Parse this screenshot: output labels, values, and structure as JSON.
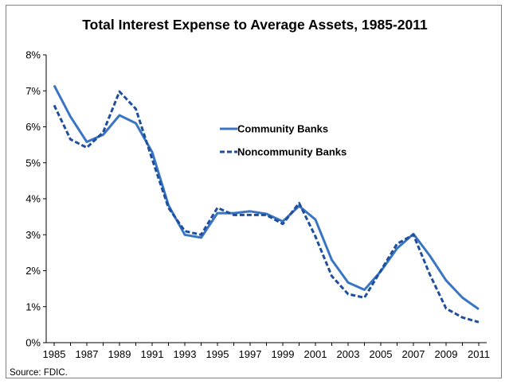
{
  "chart_data": {
    "type": "line",
    "title": "Total Interest Expense to Average Assets, 1985-2011",
    "xlabel": "",
    "ylabel": "",
    "x": [
      1985,
      1986,
      1987,
      1988,
      1989,
      1990,
      1991,
      1992,
      1993,
      1994,
      1995,
      1996,
      1997,
      1998,
      1999,
      2000,
      2001,
      2002,
      2003,
      2004,
      2005,
      2006,
      2007,
      2008,
      2009,
      2010,
      2011
    ],
    "x_tick_labels": [
      "1985",
      "1987",
      "1989",
      "1991",
      "1993",
      "1995",
      "1997",
      "1999",
      "2001",
      "2003",
      "2005",
      "2007",
      "2009",
      "2011"
    ],
    "ylim": [
      0,
      8
    ],
    "y_ticks": [
      0,
      1,
      2,
      3,
      4,
      5,
      6,
      7,
      8
    ],
    "y_tick_labels": [
      "0%",
      "1%",
      "2%",
      "3%",
      "4%",
      "5%",
      "6%",
      "7%",
      "8%"
    ],
    "grid": false,
    "legend_position": "center-right",
    "series": [
      {
        "name": "Community Banks",
        "style": "solid",
        "color": "#3a75c4",
        "values": [
          7.15,
          6.28,
          5.58,
          5.78,
          6.32,
          6.1,
          5.3,
          3.82,
          3.0,
          2.92,
          3.6,
          3.6,
          3.65,
          3.58,
          3.37,
          3.8,
          3.42,
          2.3,
          1.67,
          1.47,
          1.98,
          2.62,
          3.02,
          2.42,
          1.73,
          1.25,
          0.93
        ]
      },
      {
        "name": "Noncommunity Banks",
        "style": "dashed",
        "color": "#1f4e9a",
        "values": [
          6.6,
          5.65,
          5.42,
          5.85,
          6.98,
          6.5,
          5.1,
          3.75,
          3.1,
          3.0,
          3.75,
          3.55,
          3.55,
          3.55,
          3.3,
          3.88,
          2.95,
          1.85,
          1.35,
          1.25,
          2.0,
          2.75,
          3.0,
          1.9,
          0.95,
          0.7,
          0.57
        ]
      }
    ],
    "source": "Source:  FDIC."
  }
}
